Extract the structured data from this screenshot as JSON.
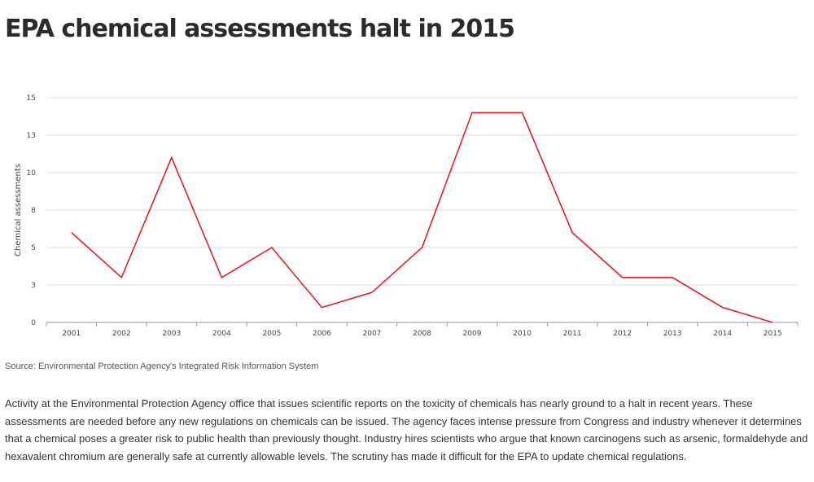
{
  "headline": "EPA chemical assessments halt in 2015",
  "source": "Source: Environmental Protection Agency's Integrated Risk Information System",
  "description": "Activity at the Environmental Protection Agency office that issues scientific reports on the toxicity of chemicals has nearly ground to a halt in recent years. These assessments are needed before any new regulations on chemicals can be issued. The agency faces intense pressure from Congress and industry whenever it determines that a chemical poses a greater risk to public health than previously thought. Industry hires scientists who argue that known carcinogens such as arsenic, formaldehyde and hexavalent chromium are generally safe at currently allowable levels. The scrutiny has made it difficult for the EPA to update chemical regulations.",
  "colors": {
    "line": "#e41e26",
    "grid": "#dddddd",
    "axis": "#999999"
  },
  "chart_data": {
    "type": "line",
    "title": "EPA chemical assessments halt in 2015",
    "xlabel": "",
    "ylabel": "Chemical assessments",
    "categories": [
      "2001",
      "2002",
      "2003",
      "2004",
      "2005",
      "2006",
      "2007",
      "2008",
      "2009",
      "2010",
      "2011",
      "2012",
      "2013",
      "2014",
      "2015"
    ],
    "series": [
      {
        "name": "Chemical assessments",
        "values": [
          6,
          3,
          11,
          3,
          5,
          1,
          2,
          5,
          14,
          14,
          6,
          3,
          3,
          1,
          0
        ]
      }
    ],
    "ylim": [
      0,
      15
    ],
    "yticks": [
      0,
      2.5,
      5,
      7.5,
      10,
      12.5,
      15
    ],
    "ytick_labels": [
      "0",
      "3",
      "5",
      "8",
      "10",
      "13",
      "15"
    ],
    "grid": true,
    "legend": "none"
  }
}
